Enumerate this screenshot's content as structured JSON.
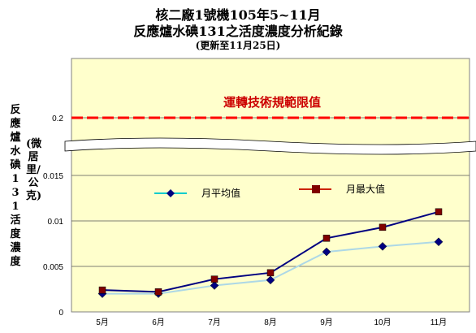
{
  "title_line1": "核二廠1號機105年5~11月",
  "title_line2": "反應爐水碘131之活度濃度分析紀錄",
  "title_line3": "(更新至11月25日)",
  "y_label": "反應爐水碘131活度濃度",
  "y_unit": "(微居里/公克)",
  "chart_data": {
    "type": "line",
    "categories": [
      "5月",
      "6月",
      "7月",
      "8月",
      "9月",
      "10月",
      "11月"
    ],
    "series": [
      {
        "name": "月平均值",
        "values": [
          0.002,
          0.002,
          0.0029,
          0.0035,
          0.0066,
          0.0072,
          0.0077
        ],
        "color": "#add8e6",
        "marker": "#000080"
      },
      {
        "name": "月最大值",
        "values": [
          0.0024,
          0.0022,
          0.0036,
          0.0043,
          0.0081,
          0.0093,
          0.011
        ],
        "color": "#000080",
        "marker": "#800000"
      }
    ],
    "y_ticks": [
      "0",
      "0.005",
      "0.01",
      "0.015",
      "0.2"
    ],
    "ylim": [
      0,
      0.015
    ],
    "axis_break": true,
    "limit_line": {
      "value": 0.2,
      "label": "運轉技術規範限值",
      "color": "#ff0000"
    },
    "plot_background": "#ffffcc",
    "grid": true,
    "legend_position": "top-center"
  }
}
